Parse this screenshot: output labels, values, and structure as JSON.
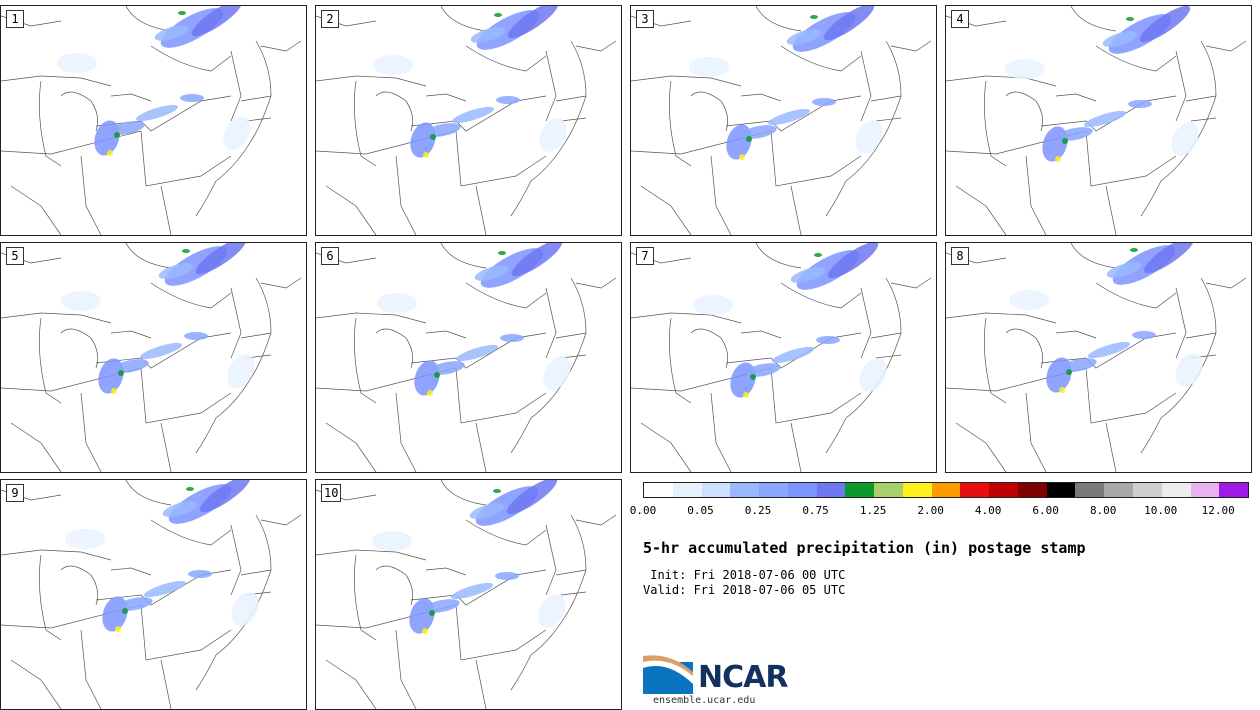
{
  "panels": [
    {
      "label": "1"
    },
    {
      "label": "2"
    },
    {
      "label": "3"
    },
    {
      "label": "4"
    },
    {
      "label": "5"
    },
    {
      "label": "6"
    },
    {
      "label": "7"
    },
    {
      "label": "8"
    },
    {
      "label": "9"
    },
    {
      "label": "10"
    }
  ],
  "colorbar": {
    "colors": [
      "#ffffff",
      "#e7f2ff",
      "#cfe0ff",
      "#9ab8ff",
      "#8aa6ff",
      "#7d93ff",
      "#6f78f2",
      "#0a9a2a",
      "#a8d06a",
      "#ffef1a",
      "#ff9a00",
      "#e80e0e",
      "#bf0000",
      "#7e0000",
      "#000000",
      "#7a7a7a",
      "#a9a9a9",
      "#cfcfcf",
      "#ececec",
      "#e6b3f0",
      "#9f1ae6"
    ],
    "tick_labels": [
      "0.00",
      "0.05",
      "0.25",
      "0.75",
      "1.25",
      "2.00",
      "4.00",
      "6.00",
      "8.00",
      "10.00",
      "12.00"
    ]
  },
  "title": "5-hr accumulated precipitation (in) postage stamp",
  "init_line": " Init: Fri 2018-07-06 00 UTC",
  "valid_line": "Valid: Fri 2018-07-06 05 UTC",
  "logo": {
    "text": "NCAR",
    "url": "ensemble.ucar.edu"
  }
}
